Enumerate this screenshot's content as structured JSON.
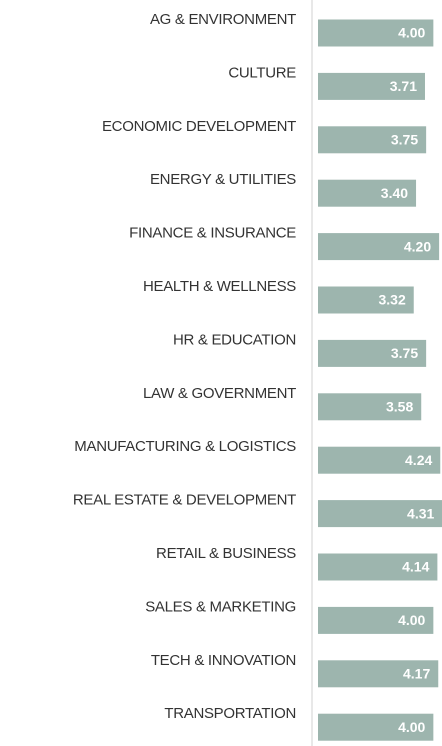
{
  "chart_data": {
    "type": "hbar",
    "categories": [
      "AG & ENVIRONMENT",
      "CULTURE",
      "ECONOMIC DEVELOPMENT",
      "ENERGY & UTILITIES",
      "FINANCE & INSURANCE",
      "HEALTH & WELLNESS",
      "HR & EDUCATION",
      "LAW & GOVERNMENT",
      "MANUFACTURING & LOGISTICS",
      "REAL ESTATE & DEVELOPMENT",
      "RETAIL & BUSINESS",
      "SALES & MARKETING",
      "TECH & INNOVATION",
      "TRANSPORTATION"
    ],
    "values": [
      4.0,
      3.71,
      3.75,
      3.4,
      4.2,
      3.32,
      3.75,
      3.58,
      4.24,
      4.31,
      4.14,
      4.0,
      4.17,
      4.0
    ],
    "value_labels": [
      "4.00",
      "3.71",
      "3.75",
      "3.40",
      "4.20",
      "3.32",
      "3.75",
      "3.58",
      "4.24",
      "4.31",
      "4.14",
      "4.00",
      "4.17",
      "4.00"
    ],
    "color": "#9db5ae",
    "xlim": [
      0,
      4.3
    ]
  }
}
